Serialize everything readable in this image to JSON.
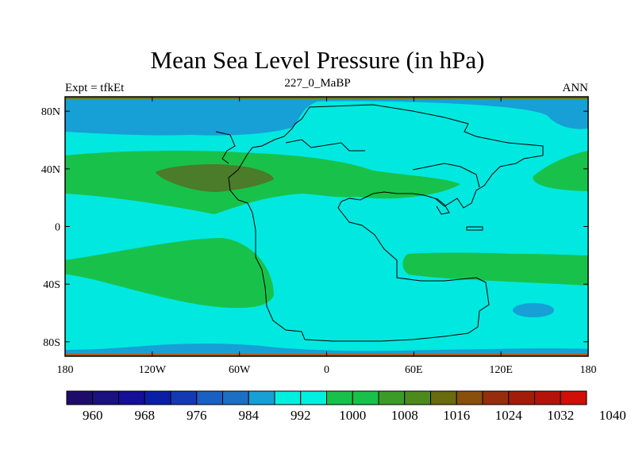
{
  "title": "Mean Sea Level Pressure (in hPa)",
  "left_label": "Expt = tfkEt",
  "center_label": "227_0_MaBP",
  "right_label": "ANN",
  "chart_data": {
    "type": "heatmap",
    "projection": "cylindrical-equidistant",
    "x_range": [
      -180,
      180
    ],
    "y_range": [
      -90,
      90
    ],
    "x_ticks": [
      {
        "value": -180,
        "label": "180"
      },
      {
        "value": -120,
        "label": "120W"
      },
      {
        "value": -60,
        "label": "60W"
      },
      {
        "value": 0,
        "label": "0"
      },
      {
        "value": 60,
        "label": "60E"
      },
      {
        "value": 120,
        "label": "120E"
      },
      {
        "value": 180,
        "label": "180"
      }
    ],
    "y_ticks": [
      {
        "value": 80,
        "label": "80N"
      },
      {
        "value": 40,
        "label": "40N"
      },
      {
        "value": 0,
        "label": "0"
      },
      {
        "value": -40,
        "label": "40S"
      },
      {
        "value": -80,
        "label": "80S"
      }
    ],
    "colorbar": {
      "colors": [
        "#1e0c6b",
        "#1a1280",
        "#150e99",
        "#0a1fa6",
        "#1439b4",
        "#1a5fc4",
        "#1b6fc4",
        "#16a0d6",
        "#00f0e0",
        "#00f0e0",
        "#18c24a",
        "#18c24a",
        "#3c9b28",
        "#4d8a1e",
        "#6a6a0e",
        "#88500a",
        "#962d0c",
        "#a31c0a",
        "#b5130a",
        "#d00f08"
      ],
      "labels": [
        "960",
        "968",
        "976",
        "984",
        "992",
        "1000",
        "1008",
        "1016",
        "1024",
        "1032",
        "1040"
      ]
    },
    "regions": [
      {
        "level": 1000,
        "color": "#00e8e0",
        "lon": [
          -180,
          180
        ],
        "lat": [
          -90,
          90
        ]
      },
      {
        "level": 992,
        "color": "#16a0d6",
        "description": "northern high latitude low"
      },
      {
        "level": 992,
        "color": "#16a0d6",
        "description": "southern ocean low"
      },
      {
        "level": 1008,
        "color": "#18c24a",
        "description": "northern subtropical high belt"
      },
      {
        "level": 1008,
        "color": "#18c24a",
        "description": "southern subtropical high belt"
      },
      {
        "level": 1016,
        "color": "#4d7a1e",
        "description": "north pacific high core"
      }
    ]
  }
}
